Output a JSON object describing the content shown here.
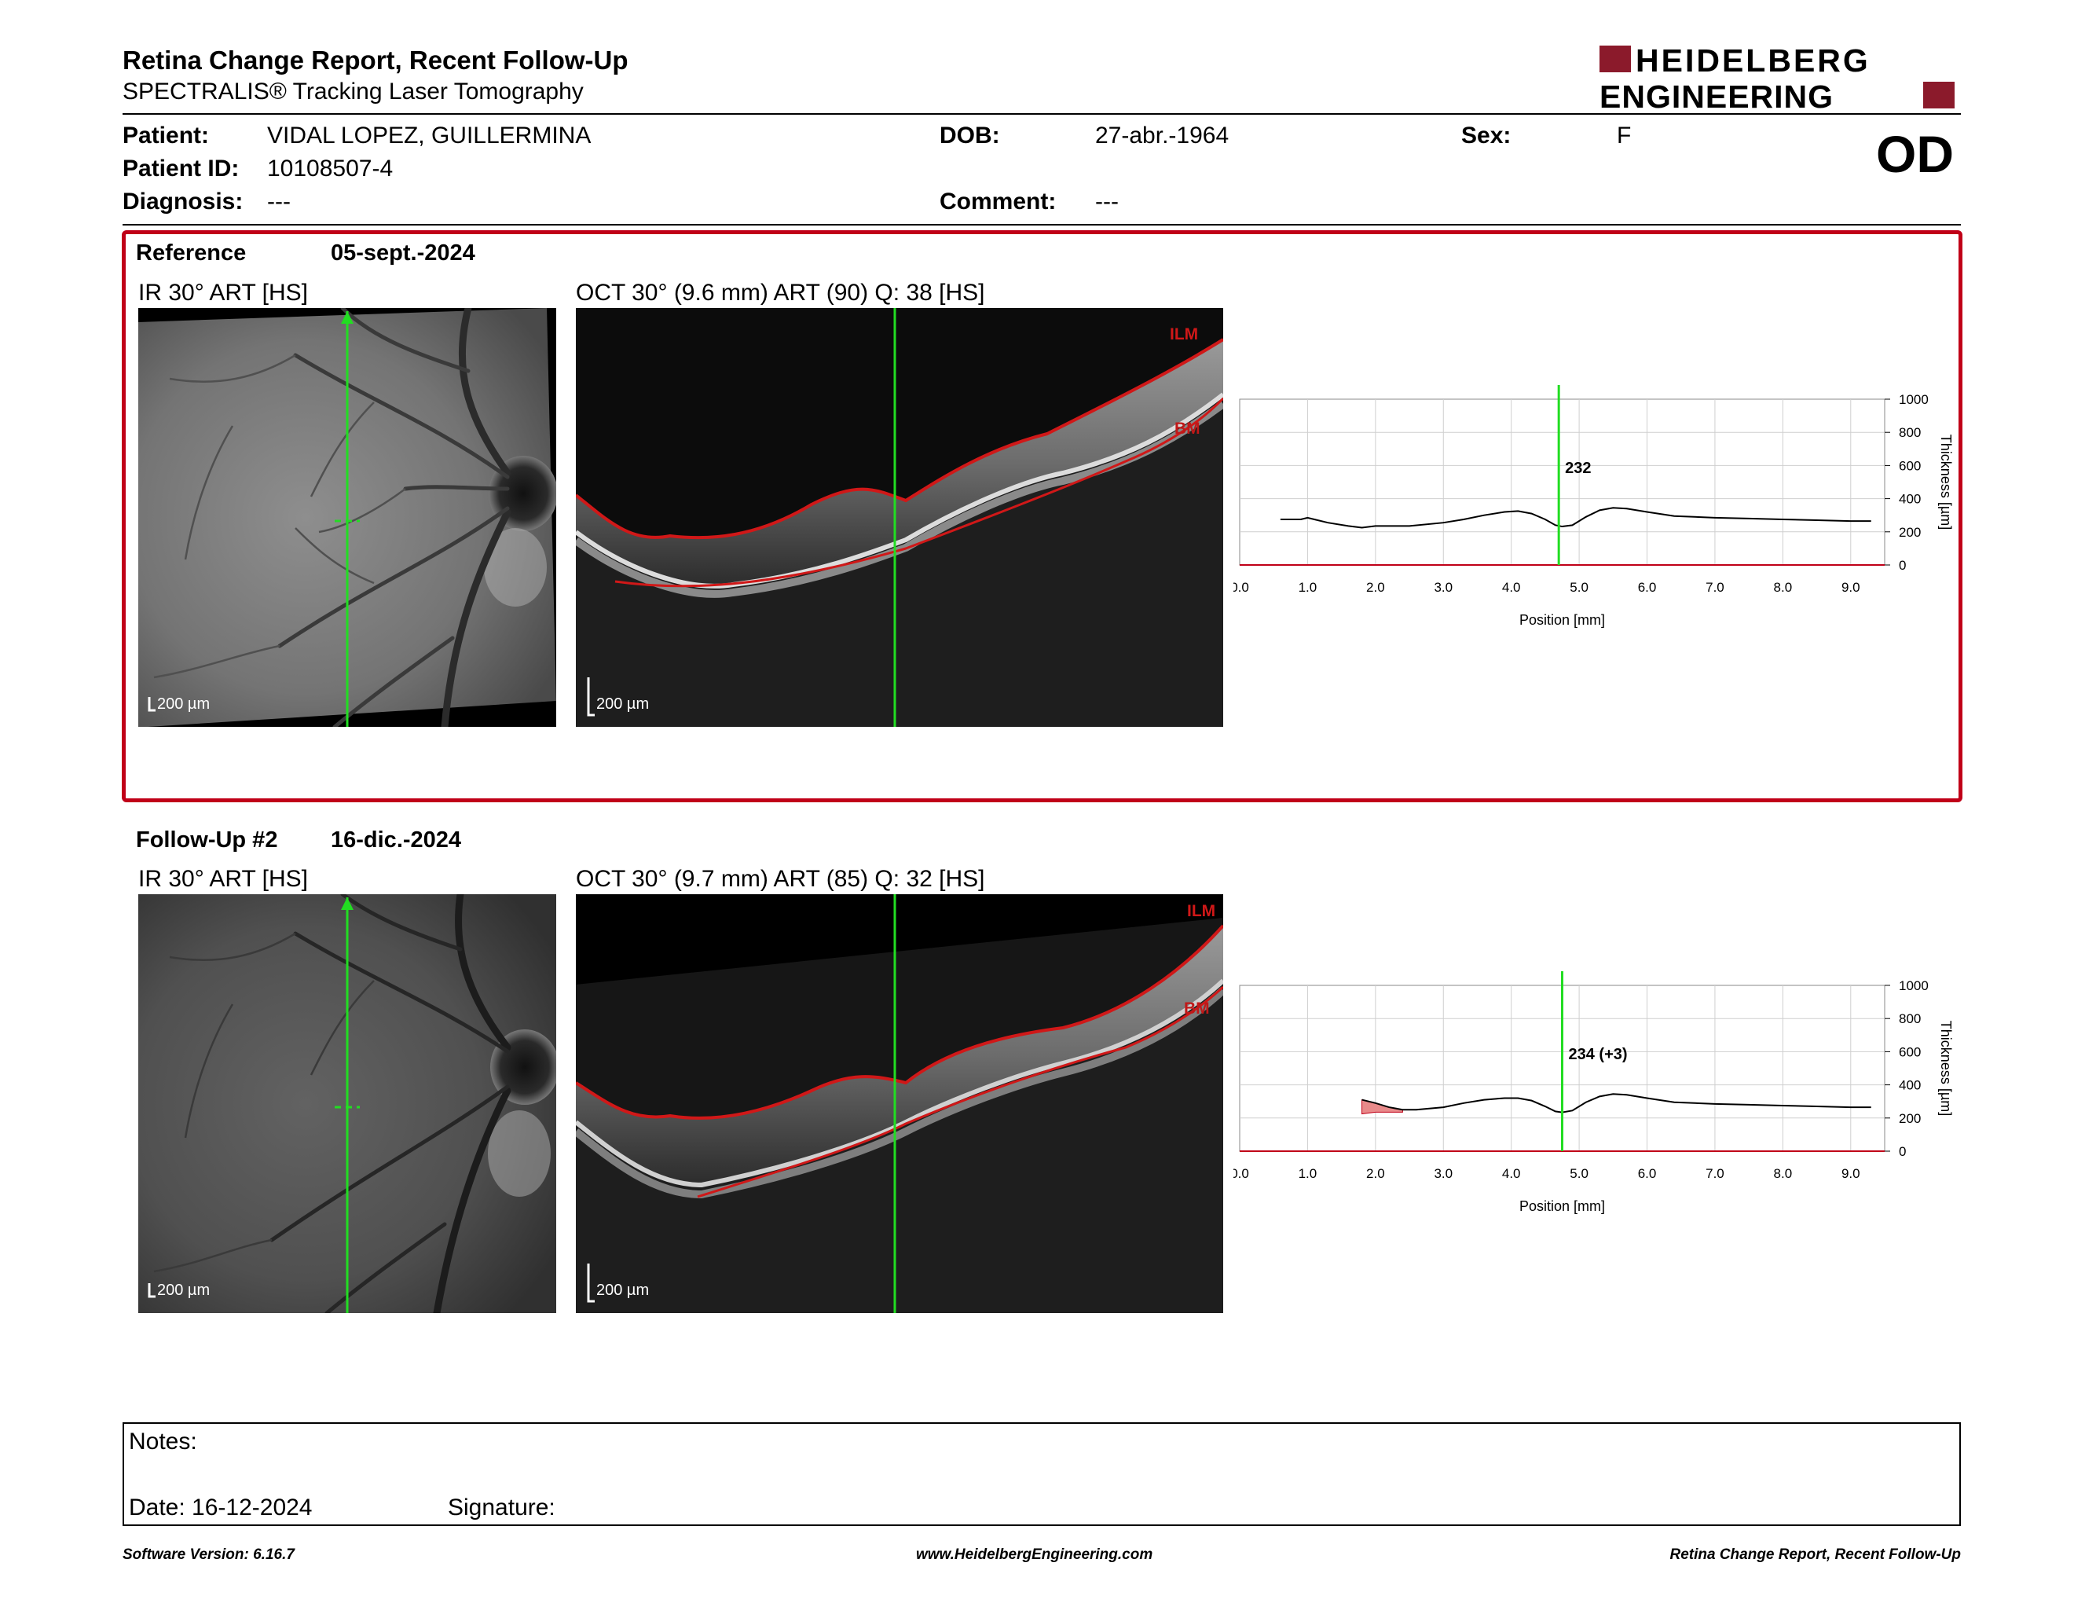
{
  "header": {
    "title": "Retina Change Report, Recent Follow-Up",
    "subtitle": "SPECTRALIS® Tracking Laser Tomography",
    "logo_line1": "HEIDELBERG",
    "logo_line2": "ENGINEERING",
    "eye": "OD"
  },
  "patient": {
    "name_label": "Patient:",
    "name": "VIDAL LOPEZ, GUILLERMINA",
    "id_label": "Patient ID:",
    "id": "10108507-4",
    "diagnosis_label": "Diagnosis:",
    "diagnosis": "---",
    "dob_label": "DOB:",
    "dob": "27-abr.-1964",
    "comment_label": "Comment:",
    "comment": "---",
    "sex_label": "Sex:",
    "sex": "F"
  },
  "reference": {
    "label": "Reference",
    "date": "05-sept.-2024",
    "ir_label": "IR 30° ART [HS]",
    "oct_label": "OCT 30° (9.6 mm) ART (90) Q: 38 [HS]",
    "scale_ir": "200 µm",
    "scale_oct": "200 µm",
    "ilm": "ILM",
    "bm": "BM"
  },
  "followup": {
    "label": "Follow-Up #2",
    "date": "16-dic.-2024",
    "ir_label": "IR 30° ART [HS]",
    "oct_label": "OCT 30° (9.7 mm) ART (85) Q: 32 [HS]",
    "scale_ir": "200 µm",
    "scale_oct": "200 µm",
    "ilm": "ILM",
    "bm": "BM"
  },
  "chart_data": [
    {
      "type": "line",
      "xlabel": "Position [mm]",
      "ylabel": "Thickness [µm]",
      "xlim": [
        0,
        9.5
      ],
      "ylim": [
        0,
        1000
      ],
      "x_ticks": [
        "0.0",
        "1.0",
        "2.0",
        "3.0",
        "4.0",
        "5.0",
        "6.0",
        "7.0",
        "8.0",
        "9.0"
      ],
      "y_ticks": [
        "1000",
        "800",
        "600",
        "400",
        "200",
        "0"
      ],
      "cursor_x": 4.7,
      "cursor_label": "232",
      "x": [
        0.6,
        0.9,
        1.0,
        1.1,
        1.3,
        1.6,
        1.8,
        2.0,
        2.5,
        3.0,
        3.3,
        3.6,
        3.9,
        4.1,
        4.3,
        4.5,
        4.65,
        4.75,
        4.9,
        5.1,
        5.3,
        5.5,
        5.7,
        6.0,
        6.4,
        7.0,
        7.5,
        8.0,
        8.5,
        9.0,
        9.3
      ],
      "y": [
        275,
        275,
        285,
        275,
        255,
        235,
        225,
        235,
        235,
        255,
        275,
        300,
        320,
        325,
        310,
        275,
        240,
        232,
        240,
        290,
        330,
        345,
        340,
        320,
        295,
        285,
        280,
        275,
        270,
        265,
        265
      ]
    },
    {
      "type": "line",
      "xlabel": "Position [mm]",
      "ylabel": "Thickness [µm]",
      "xlim": [
        0,
        9.5
      ],
      "ylim": [
        0,
        1000
      ],
      "x_ticks": [
        "0.0",
        "1.0",
        "2.0",
        "3.0",
        "4.0",
        "5.0",
        "6.0",
        "7.0",
        "8.0",
        "9.0"
      ],
      "y_ticks": [
        "1000",
        "800",
        "600",
        "400",
        "200",
        "0"
      ],
      "cursor_x": 4.75,
      "cursor_label": "234 (+3)",
      "x": [
        1.8,
        2.0,
        2.2,
        2.4,
        2.6,
        3.0,
        3.3,
        3.6,
        3.9,
        4.1,
        4.3,
        4.5,
        4.65,
        4.75,
        4.9,
        5.1,
        5.3,
        5.5,
        5.7,
        6.0,
        6.4,
        7.0,
        7.5,
        8.0,
        8.5,
        9.0,
        9.3
      ],
      "y": [
        310,
        290,
        265,
        250,
        250,
        265,
        290,
        310,
        320,
        320,
        305,
        270,
        240,
        234,
        245,
        295,
        330,
        345,
        340,
        320,
        295,
        285,
        280,
        275,
        270,
        265,
        265
      ],
      "diff_x": [
        1.8,
        2.0,
        2.2,
        2.4
      ],
      "diff_ref": [
        225,
        235,
        235,
        235
      ],
      "diff_fu": [
        310,
        290,
        265,
        250
      ]
    }
  ],
  "notes": {
    "notes_label": "Notes:",
    "date_label": "Date: 16-12-2024",
    "signature_label": "Signature:"
  },
  "footer": {
    "version": "Software Version: 6.16.7",
    "website": "www.HeidelbergEngineering.com",
    "report_name": "Retina Change Report, Recent Follow-Up"
  },
  "colors": {
    "accent": "#c00018",
    "logo": "#8b1a2b",
    "cursor": "#22dd22",
    "diff_fill": "#e88a8a"
  }
}
